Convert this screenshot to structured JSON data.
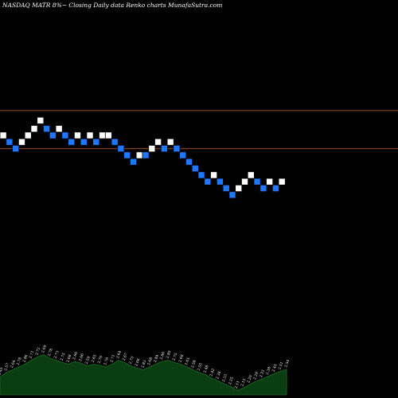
{
  "chart_data": {
    "type": "renko",
    "title": "NASDAQ MATR 8%~  Closing Daily data  Renko  charts MunafaSutra.com",
    "colors": {
      "background": "#000000",
      "up_brick": "#ffffff",
      "down_brick": "#1e78ff",
      "reference_line": "#a0522d",
      "volume_fill": "#0b3d12",
      "volume_stroke": "#1b6e23",
      "text": "#ffffff"
    },
    "reference_lines": [
      2.92,
      2.69
    ],
    "price_range": [
      2.0,
      3.3
    ],
    "bricks": [
      {
        "dir": "up",
        "value": 2.77
      },
      {
        "dir": "down",
        "value": 2.73
      },
      {
        "dir": "down",
        "value": 2.69
      },
      {
        "dir": "up",
        "value": 2.73
      },
      {
        "dir": "up",
        "value": 2.77
      },
      {
        "dir": "up",
        "value": 2.81
      },
      {
        "dir": "up",
        "value": 2.86
      },
      {
        "dir": "down",
        "value": 2.81
      },
      {
        "dir": "down",
        "value": 2.77
      },
      {
        "dir": "up",
        "value": 2.81
      },
      {
        "dir": "down",
        "value": 2.77
      },
      {
        "dir": "down",
        "value": 2.73
      },
      {
        "dir": "up",
        "value": 2.77
      },
      {
        "dir": "down",
        "value": 2.73
      },
      {
        "dir": "up",
        "value": 2.77
      },
      {
        "dir": "down",
        "value": 2.73
      },
      {
        "dir": "up",
        "value": 2.77
      },
      {
        "dir": "up",
        "value": 2.77
      },
      {
        "dir": "down",
        "value": 2.73
      },
      {
        "dir": "down",
        "value": 2.69
      },
      {
        "dir": "down",
        "value": 2.65
      },
      {
        "dir": "down",
        "value": 2.61
      },
      {
        "dir": "up",
        "value": 2.65
      },
      {
        "dir": "down",
        "value": 2.65
      },
      {
        "dir": "up",
        "value": 2.69
      },
      {
        "dir": "up",
        "value": 2.73
      },
      {
        "dir": "down",
        "value": 2.69
      },
      {
        "dir": "up",
        "value": 2.73
      },
      {
        "dir": "down",
        "value": 2.69
      },
      {
        "dir": "down",
        "value": 2.65
      },
      {
        "dir": "down",
        "value": 2.61
      },
      {
        "dir": "down",
        "value": 2.57
      },
      {
        "dir": "down",
        "value": 2.53
      },
      {
        "dir": "down",
        "value": 2.49
      },
      {
        "dir": "up",
        "value": 2.53
      },
      {
        "dir": "down",
        "value": 2.49
      },
      {
        "dir": "down",
        "value": 2.45
      },
      {
        "dir": "down",
        "value": 2.41
      },
      {
        "dir": "up",
        "value": 2.45
      },
      {
        "dir": "up",
        "value": 2.49
      },
      {
        "dir": "up",
        "value": 2.53
      },
      {
        "dir": "down",
        "value": 2.49
      },
      {
        "dir": "down",
        "value": 2.45
      },
      {
        "dir": "up",
        "value": 2.49
      },
      {
        "dir": "down",
        "value": 2.45
      },
      {
        "dir": "up",
        "value": 2.49
      }
    ],
    "volume": {
      "values": [
        0.32,
        0.4,
        0.45,
        0.5,
        0.55,
        0.62,
        0.68,
        0.72,
        0.66,
        0.62,
        0.58,
        0.55,
        0.6,
        0.57,
        0.52,
        0.55,
        0.53,
        0.5,
        0.55,
        0.62,
        0.58,
        0.52,
        0.48,
        0.45,
        0.5,
        0.55,
        0.6,
        0.62,
        0.58,
        0.55,
        0.5,
        0.45,
        0.4,
        0.36,
        0.3,
        0.25,
        0.2,
        0.15,
        0.08,
        0.12,
        0.18,
        0.24,
        0.28,
        0.33,
        0.38,
        0.42,
        0.46
      ],
      "labels": [
        "2.45",
        "2.57",
        "2.64",
        "2.78",
        "2.86",
        "2.71",
        "2.72",
        "2.69",
        "2.78",
        "2.73",
        "2.75",
        "2.68",
        "2.66",
        "2.66",
        "2.59",
        "2.65",
        "2.76",
        "2.70",
        "2.71",
        "2.64",
        "2.67",
        "2.73",
        "2.66",
        "2.83",
        "2.68",
        "2.84",
        "2.86",
        "2.80",
        "2.75",
        "2.68",
        "2.61",
        "2.58",
        "2.55",
        "2.48",
        "2.42",
        "2.38",
        "2.33",
        "2.25",
        "2.11",
        "2.15",
        "2.20",
        "2.29",
        "2.32",
        "2.38",
        "2.45",
        "2.51",
        "2.54"
      ]
    }
  }
}
